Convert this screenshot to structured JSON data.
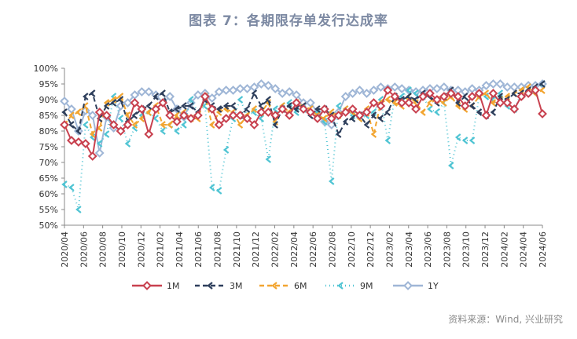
{
  "title": "图表 7：各期限存单发行达成率",
  "source": "资料来源：Wind, 兴业研究",
  "chart_data": {
    "type": "line",
    "ylim": [
      0.5,
      1.0
    ],
    "y_ticks": [
      "50%",
      "55%",
      "60%",
      "65%",
      "70%",
      "75%",
      "80%",
      "85%",
      "90%",
      "95%",
      "100%"
    ],
    "x_tick_labels": [
      "2020/04",
      "2020/06",
      "2020/08",
      "2020/10",
      "2020/12",
      "2021/02",
      "2021/04",
      "2021/06",
      "2021/08",
      "2021/10",
      "2021/12",
      "2022/02",
      "2022/04",
      "2022/06",
      "2022/08",
      "2022/10",
      "2022/12",
      "2023/02",
      "2023/04",
      "2023/06",
      "2023/08",
      "2023/10",
      "2023/12",
      "2024/02",
      "2024/04",
      "2024/06"
    ],
    "grid": false,
    "legend_position": "bottom",
    "series": [
      {
        "name": "1M",
        "color": "#c8414f",
        "marker": "diamond",
        "dash": "solid",
        "values": [
          0.82,
          0.77,
          0.765,
          0.76,
          0.72,
          0.86,
          0.85,
          0.82,
          0.8,
          0.82,
          0.89,
          0.87,
          0.79,
          0.87,
          0.89,
          0.85,
          0.83,
          0.85,
          0.84,
          0.85,
          0.91,
          0.87,
          0.82,
          0.84,
          0.85,
          0.85,
          0.84,
          0.82,
          0.86,
          0.86,
          0.85,
          0.87,
          0.85,
          0.89,
          0.87,
          0.86,
          0.84,
          0.87,
          0.84,
          0.85,
          0.86,
          0.87,
          0.85,
          0.86,
          0.89,
          0.88,
          0.93,
          0.91,
          0.89,
          0.89,
          0.87,
          0.91,
          0.92,
          0.9,
          0.91,
          0.92,
          0.91,
          0.88,
          0.91,
          0.92,
          0.85,
          0.92,
          0.89,
          0.89,
          0.87,
          0.91,
          0.92,
          0.93,
          0.855
        ]
      },
      {
        "name": "3M",
        "color": "#2e3f5c",
        "marker": "chevron",
        "dash": "6,4",
        "values": [
          0.86,
          0.82,
          0.8,
          0.91,
          0.92,
          0.84,
          0.88,
          0.89,
          0.9,
          0.83,
          0.85,
          0.87,
          0.88,
          0.91,
          0.92,
          0.86,
          0.87,
          0.88,
          0.88,
          0.86,
          0.9,
          0.88,
          0.87,
          0.88,
          0.88,
          0.85,
          0.87,
          0.92,
          0.88,
          0.9,
          0.82,
          0.87,
          0.88,
          0.87,
          0.88,
          0.85,
          0.87,
          0.87,
          0.85,
          0.79,
          0.83,
          0.84,
          0.85,
          0.82,
          0.85,
          0.84,
          0.86,
          0.91,
          0.9,
          0.91,
          0.9,
          0.92,
          0.91,
          0.89,
          0.91,
          0.93,
          0.89,
          0.91,
          0.88,
          0.86,
          0.85,
          0.86,
          0.91,
          0.9,
          0.92,
          0.92,
          0.93,
          0.94,
          0.95
        ]
      },
      {
        "name": "6M",
        "color": "#f2a531",
        "marker": "chevron",
        "dash": "6,4",
        "values": [
          0.82,
          0.85,
          0.86,
          0.88,
          0.79,
          0.81,
          0.89,
          0.9,
          0.91,
          0.85,
          0.82,
          0.84,
          0.86,
          0.88,
          0.82,
          0.82,
          0.85,
          0.86,
          0.84,
          0.84,
          0.91,
          0.82,
          0.86,
          0.87,
          0.86,
          0.82,
          0.85,
          0.87,
          0.86,
          0.89,
          0.83,
          0.88,
          0.86,
          0.89,
          0.88,
          0.87,
          0.85,
          0.84,
          0.86,
          0.85,
          0.87,
          0.86,
          0.84,
          0.87,
          0.79,
          0.89,
          0.9,
          0.89,
          0.88,
          0.91,
          0.89,
          0.86,
          0.89,
          0.9,
          0.89,
          0.91,
          0.88,
          0.87,
          0.88,
          0.91,
          0.92,
          0.89,
          0.9,
          0.91,
          0.92,
          0.93,
          0.94,
          0.92,
          0.93
        ]
      },
      {
        "name": "9M",
        "color": "#4fc4d3",
        "marker": "chevron",
        "dash": "1,4",
        "values": [
          0.63,
          0.62,
          0.55,
          0.82,
          0.78,
          0.76,
          0.79,
          0.91,
          0.84,
          0.76,
          0.81,
          0.85,
          0.86,
          0.84,
          0.8,
          0.82,
          0.8,
          0.82,
          0.9,
          0.86,
          0.88,
          0.62,
          0.61,
          0.74,
          0.84,
          0.9,
          0.85,
          0.86,
          0.84,
          0.71,
          0.87,
          0.88,
          0.89,
          0.86,
          0.87,
          0.85,
          0.86,
          0.83,
          0.64,
          0.88,
          0.87,
          0.85,
          0.84,
          0.85,
          0.86,
          0.9,
          0.77,
          0.91,
          0.91,
          0.93,
          0.92,
          0.91,
          0.87,
          0.86,
          0.89,
          0.69,
          0.78,
          0.77,
          0.77,
          0.91,
          0.91,
          0.9,
          0.92,
          0.88,
          0.87,
          0.92,
          0.93,
          0.92,
          0.95
        ]
      },
      {
        "name": "1Y",
        "color": "#9fb6d6",
        "marker": "diamond",
        "dash": "solid",
        "values": [
          0.895,
          0.87,
          0.8,
          0.865,
          0.85,
          0.73,
          0.845,
          0.81,
          0.88,
          0.89,
          0.915,
          0.925,
          0.925,
          0.915,
          0.89,
          0.91,
          0.87,
          0.845,
          0.89,
          0.915,
          0.92,
          0.905,
          0.925,
          0.93,
          0.93,
          0.935,
          0.935,
          0.94,
          0.95,
          0.945,
          0.935,
          0.92,
          0.925,
          0.915,
          0.89,
          0.89,
          0.86,
          0.83,
          0.82,
          0.86,
          0.91,
          0.92,
          0.93,
          0.92,
          0.93,
          0.94,
          0.935,
          0.94,
          0.935,
          0.93,
          0.925,
          0.93,
          0.935,
          0.935,
          0.94,
          0.93,
          0.93,
          0.925,
          0.935,
          0.93,
          0.945,
          0.95,
          0.95,
          0.94,
          0.94,
          0.94,
          0.945,
          0.945,
          0.95
        ]
      }
    ]
  }
}
